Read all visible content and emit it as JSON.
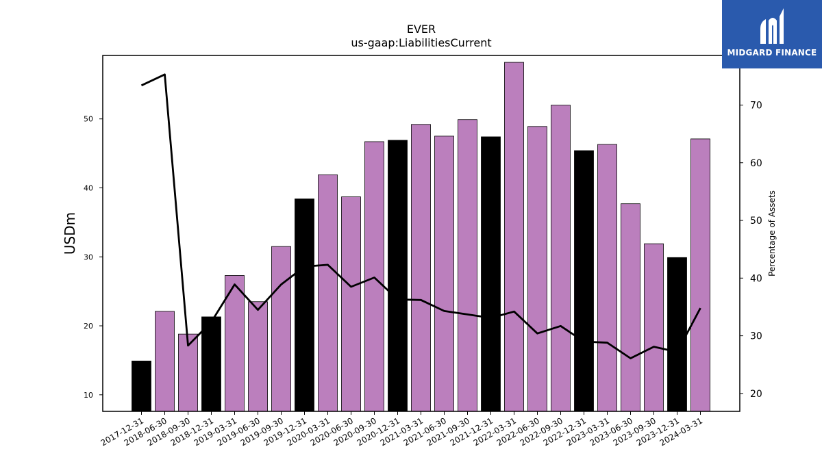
{
  "chart_data": {
    "type": "bar",
    "title": "EVER",
    "subtitle": "us-gaap:LiabilitiesCurrent",
    "ylabel": "USDm",
    "y2label": "Percentage of Assets",
    "ylim": [
      7.6,
      59.2
    ],
    "y2lim": [
      16.9,
      78.6
    ],
    "yticks": [
      10,
      20,
      30,
      40,
      50
    ],
    "y2ticks": [
      20,
      30,
      40,
      50,
      60,
      70
    ],
    "grid": false,
    "categories": [
      "2017-12-31",
      "2018-06-30",
      "2018-09-30",
      "2018-12-31",
      "2019-03-31",
      "2019-06-30",
      "2019-09-30",
      "2019-12-31",
      "2020-03-31",
      "2020-06-30",
      "2020-09-30",
      "2020-12-31",
      "2021-03-31",
      "2021-06-30",
      "2021-09-30",
      "2021-12-31",
      "2022-03-31",
      "2022-06-30",
      "2022-09-30",
      "2022-12-31",
      "2023-03-31",
      "2023-06-30",
      "2023-09-30",
      "2023-12-31",
      "2024-03-31"
    ],
    "series": [
      {
        "kind": "bar",
        "values": [
          14.9,
          22.1,
          18.8,
          21.3,
          27.3,
          23.5,
          31.5,
          38.4,
          41.9,
          38.7,
          46.7,
          46.9,
          49.2,
          47.5,
          49.9,
          47.4,
          58.2,
          48.9,
          52.0,
          45.4,
          46.3,
          37.7,
          31.9,
          29.9,
          47.1
        ],
        "colors": [
          "#000000",
          "#bb7fbd",
          "#bb7fbd",
          "#000000",
          "#bb7fbd",
          "#bb7fbd",
          "#bb7fbd",
          "#000000",
          "#bb7fbd",
          "#bb7fbd",
          "#bb7fbd",
          "#000000",
          "#bb7fbd",
          "#bb7fbd",
          "#bb7fbd",
          "#000000",
          "#bb7fbd",
          "#bb7fbd",
          "#bb7fbd",
          "#000000",
          "#bb7fbd",
          "#bb7fbd",
          "#bb7fbd",
          "#000000",
          "#bb7fbd"
        ]
      },
      {
        "kind": "line",
        "axis": "right",
        "values": [
          73.4,
          75.3,
          28.3,
          32.4,
          38.9,
          34.5,
          38.9,
          42.0,
          42.3,
          38.5,
          40.1,
          36.3,
          36.2,
          34.3,
          33.7,
          33.1,
          34.2,
          30.4,
          31.7,
          29.0,
          28.8,
          26.1,
          28.1,
          27.2,
          34.8
        ],
        "color": "#000000"
      }
    ]
  },
  "logo": {
    "text": "MIDGARD FINANCE",
    "bg": "#2a5aad"
  }
}
